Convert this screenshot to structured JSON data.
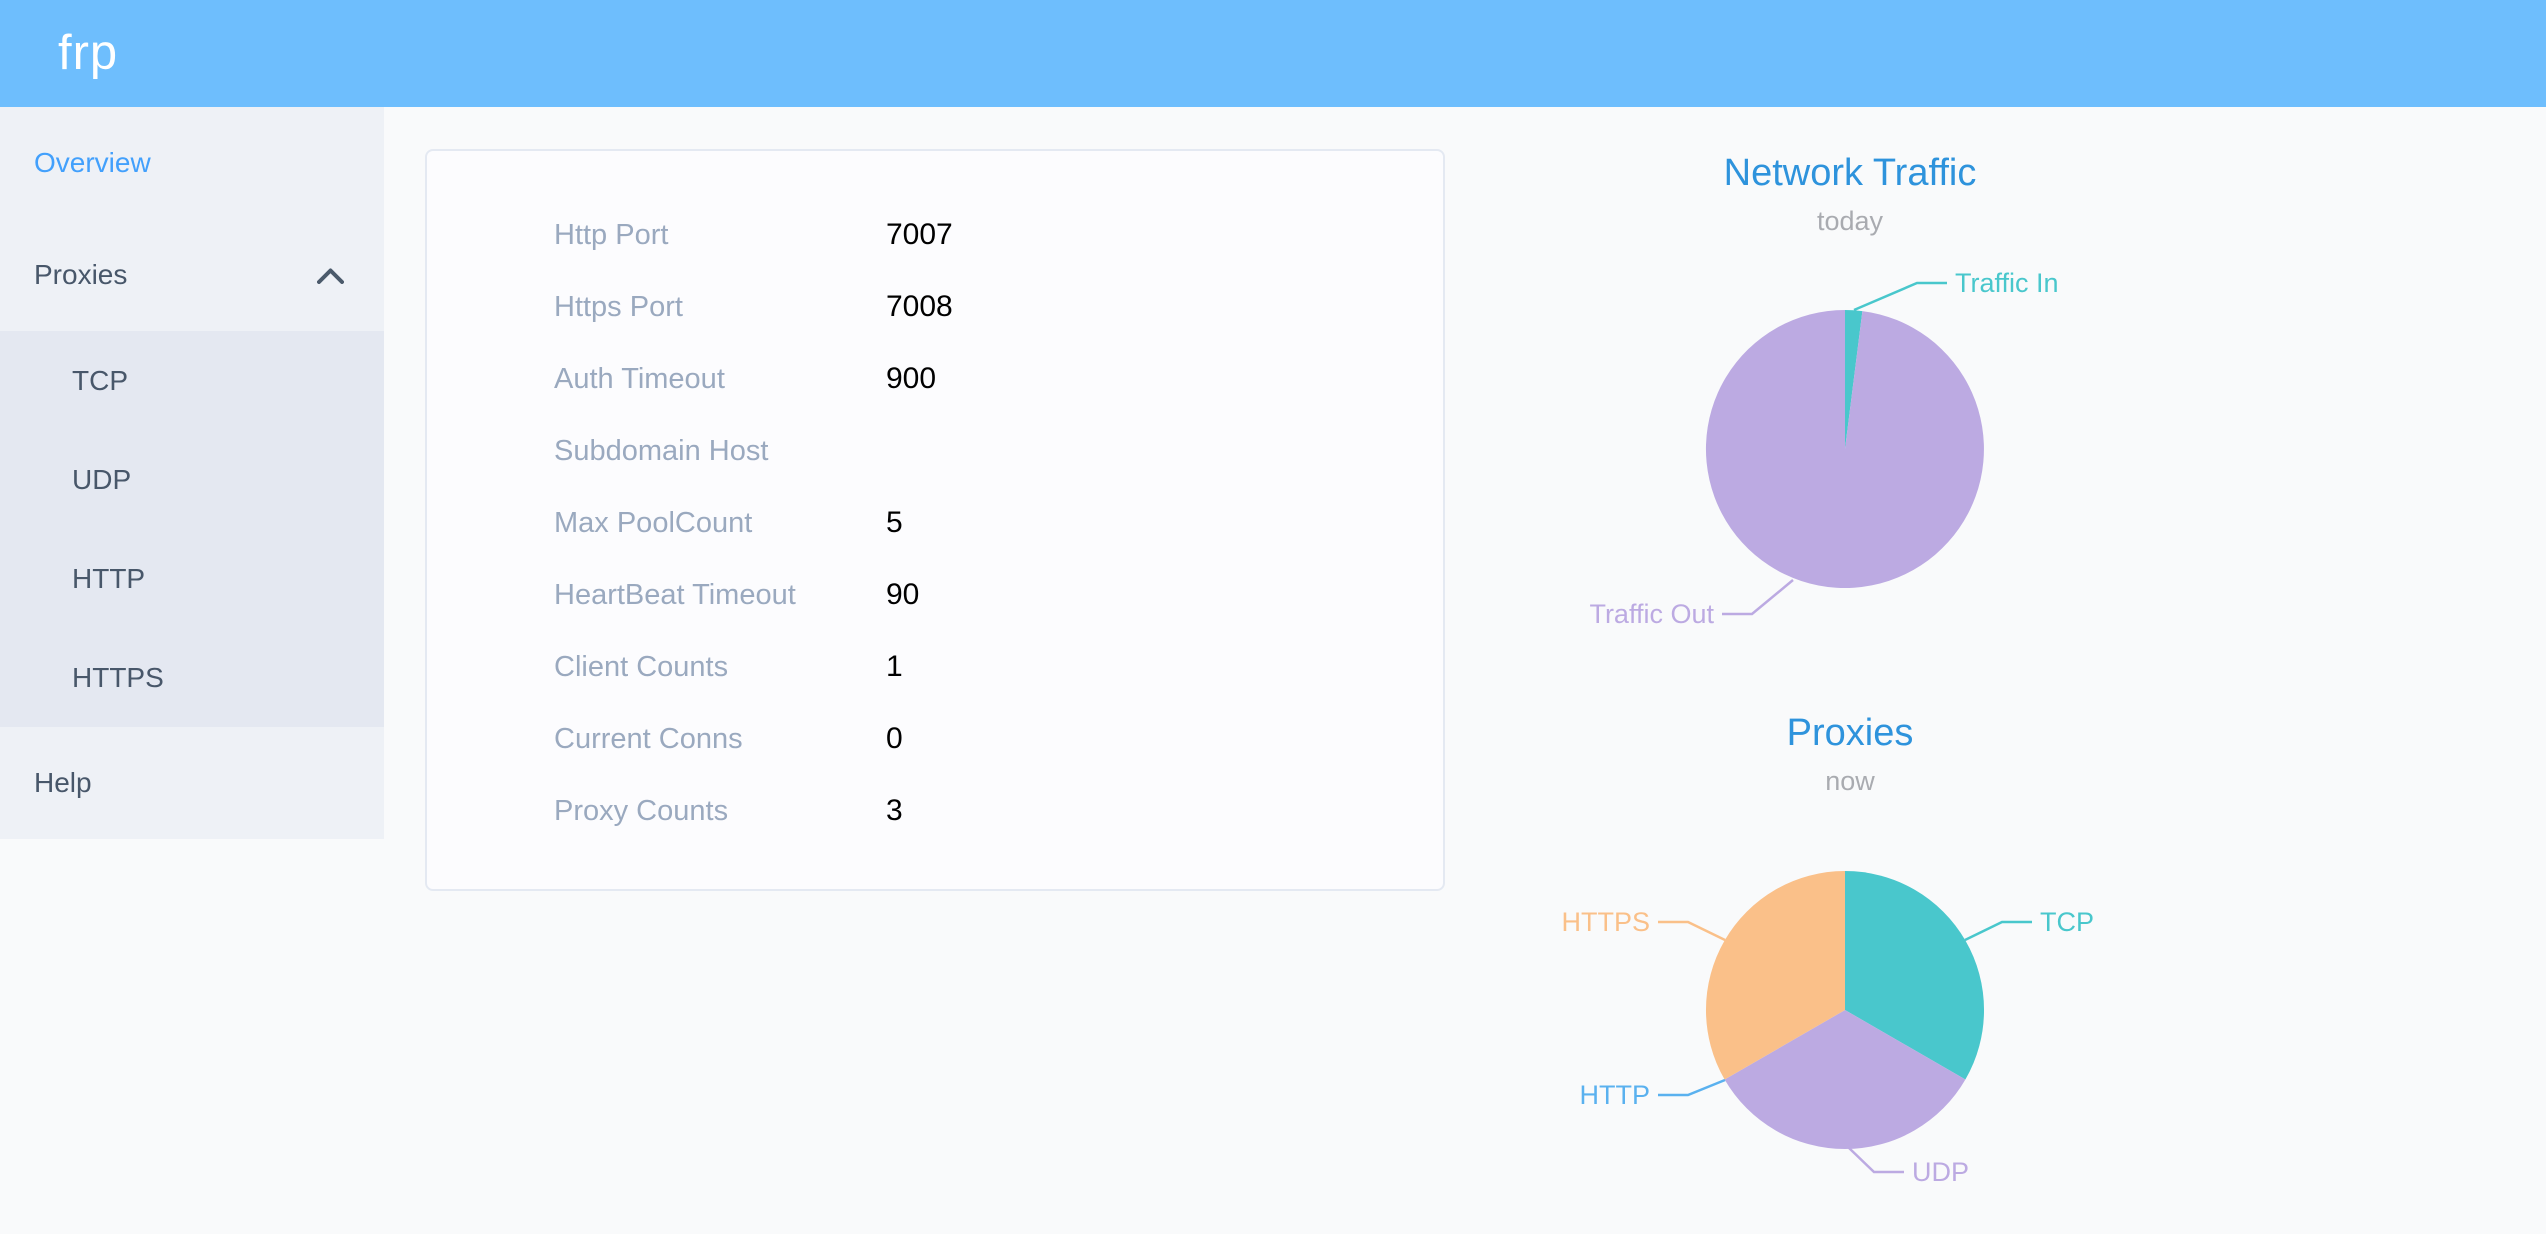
{
  "header": {
    "logo": "frp",
    "bg_color": "#6ebefd"
  },
  "sidebar": {
    "overview_label": "Overview",
    "proxies_label": "Proxies",
    "proxies_expanded": true,
    "proxy_types": [
      "TCP",
      "UDP",
      "HTTP",
      "HTTPS"
    ],
    "help_label": "Help",
    "active_item": "Overview",
    "colors": {
      "bg": "#eef1f6",
      "submenu_bg": "#e4e8f1",
      "text": "#48576a",
      "active_text": "#42a0fc"
    }
  },
  "server_info": {
    "rows": [
      {
        "label": "Http Port",
        "value": "7007"
      },
      {
        "label": "Https Port",
        "value": "7008"
      },
      {
        "label": "Auth Timeout",
        "value": "900"
      },
      {
        "label": "Subdomain Host",
        "value": ""
      },
      {
        "label": "Max PoolCount",
        "value": "5"
      },
      {
        "label": "HeartBeat Timeout",
        "value": "90"
      },
      {
        "label": "Client Counts",
        "value": "1"
      },
      {
        "label": "Current Conns",
        "value": "0"
      },
      {
        "label": "Proxy Counts",
        "value": "3"
      }
    ]
  },
  "chart_data": [
    {
      "type": "pie",
      "title": "Network Traffic",
      "subtitle": "today",
      "legend_position": "none",
      "labels": "leader-lines",
      "values_are": "share_percent_estimated_from_arc",
      "slices": [
        {
          "label": "Traffic In",
          "value": 2,
          "color": "#49c7cc"
        },
        {
          "label": "Traffic Out",
          "value": 98,
          "color": "#bcaae2"
        }
      ]
    },
    {
      "type": "pie",
      "title": "Proxies",
      "subtitle": "now",
      "legend_position": "none",
      "labels": "leader-lines",
      "values_are": "proxy_counts",
      "slices": [
        {
          "label": "TCP",
          "value": 1,
          "color": "#49c7cc"
        },
        {
          "label": "UDP",
          "value": 1,
          "color": "#bcaae2"
        },
        {
          "label": "HTTP",
          "value": 0,
          "color": "#5ab1ef"
        },
        {
          "label": "HTTPS",
          "value": 1,
          "color": "#fac089"
        }
      ]
    }
  ],
  "theme": {
    "title_color": "#2e93dc",
    "subtitle_color": "#a9abb0",
    "page_bg": "#f9fafb",
    "panel_border": "#e4e9f2"
  }
}
